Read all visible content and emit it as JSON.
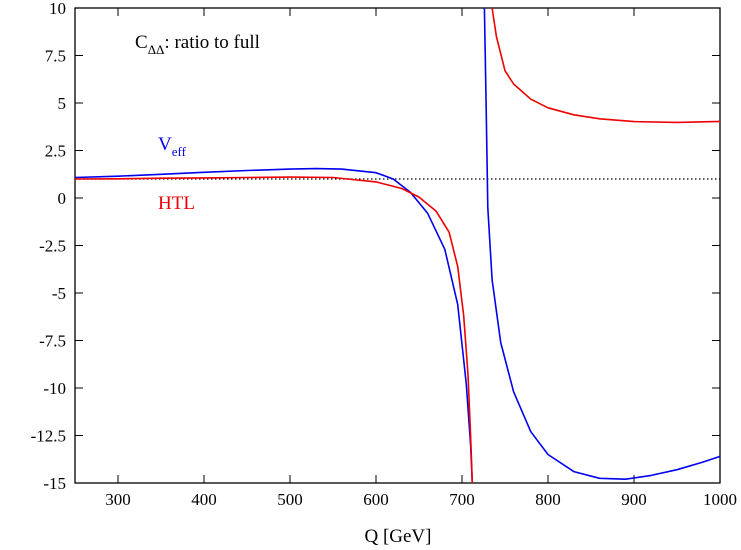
{
  "chart_data": {
    "type": "line",
    "title_main": "C",
    "title_sub": "ΔΔ",
    "title_rest": ": ratio to full",
    "xlabel": "Q [GeV]",
    "ylabel": "",
    "xlim": [
      250,
      1000
    ],
    "ylim": [
      -15,
      10
    ],
    "x_ticks": [
      300,
      400,
      500,
      600,
      700,
      800,
      900,
      1000
    ],
    "y_ticks": [
      10,
      7.5,
      5,
      2.5,
      0,
      -2.5,
      -5,
      -7.5,
      -10,
      -12.5,
      -15
    ],
    "y_tick_labels": [
      "10",
      "7.5",
      "5",
      "2.5",
      "0",
      "-2.5",
      "-5",
      "-7.5",
      "-10",
      "-12.5",
      "-15"
    ],
    "grid": false,
    "reference_line": {
      "y": 1,
      "style": "dotted",
      "color": "#000000"
    },
    "series": [
      {
        "name_main": "V",
        "name_sub": "eff",
        "color": "#0000ee",
        "segments": [
          [
            [
              250,
              1.08
            ],
            [
              300,
              1.15
            ],
            [
              350,
              1.25
            ],
            [
              400,
              1.35
            ],
            [
              450,
              1.45
            ],
            [
              500,
              1.52
            ],
            [
              530,
              1.55
            ],
            [
              560,
              1.52
            ],
            [
              600,
              1.33
            ],
            [
              620,
              1.0
            ],
            [
              640,
              0.3
            ],
            [
              660,
              -0.8
            ],
            [
              680,
              -2.7
            ],
            [
              695,
              -5.6
            ],
            [
              705,
              -9.8
            ],
            [
              710,
              -13.0
            ],
            [
              712,
              -15.0
            ]
          ],
          [
            [
              726,
              10.0
            ],
            [
              728,
              5.0
            ],
            [
              730,
              -0.5
            ],
            [
              735,
              -4.3
            ],
            [
              745,
              -7.6
            ],
            [
              760,
              -10.2
            ],
            [
              780,
              -12.3
            ],
            [
              800,
              -13.5
            ],
            [
              830,
              -14.4
            ],
            [
              860,
              -14.75
            ],
            [
              890,
              -14.8
            ],
            [
              920,
              -14.6
            ],
            [
              950,
              -14.3
            ],
            [
              980,
              -13.9
            ],
            [
              1000,
              -13.6
            ]
          ]
        ]
      },
      {
        "name_main": "HTL",
        "name_sub": "",
        "color": "#ee0000",
        "segments": [
          [
            [
              250,
              1.0
            ],
            [
              300,
              1.01
            ],
            [
              350,
              1.04
            ],
            [
              400,
              1.06
            ],
            [
              450,
              1.08
            ],
            [
              500,
              1.1
            ],
            [
              550,
              1.08
            ],
            [
              600,
              0.85
            ],
            [
              630,
              0.5
            ],
            [
              650,
              0.05
            ],
            [
              670,
              -0.7
            ],
            [
              685,
              -1.8
            ],
            [
              695,
              -3.6
            ],
            [
              702,
              -6.2
            ],
            [
              707,
              -9.3
            ],
            [
              710,
              -12.5
            ],
            [
              712,
              -15.0
            ]
          ],
          [
            [
              735,
              10.0
            ],
            [
              740,
              8.5
            ],
            [
              750,
              6.7
            ],
            [
              760,
              6.0
            ],
            [
              780,
              5.2
            ],
            [
              800,
              4.75
            ],
            [
              830,
              4.38
            ],
            [
              860,
              4.17
            ],
            [
              900,
              4.02
            ],
            [
              950,
              3.98
            ],
            [
              1000,
              4.03
            ]
          ]
        ]
      }
    ]
  }
}
